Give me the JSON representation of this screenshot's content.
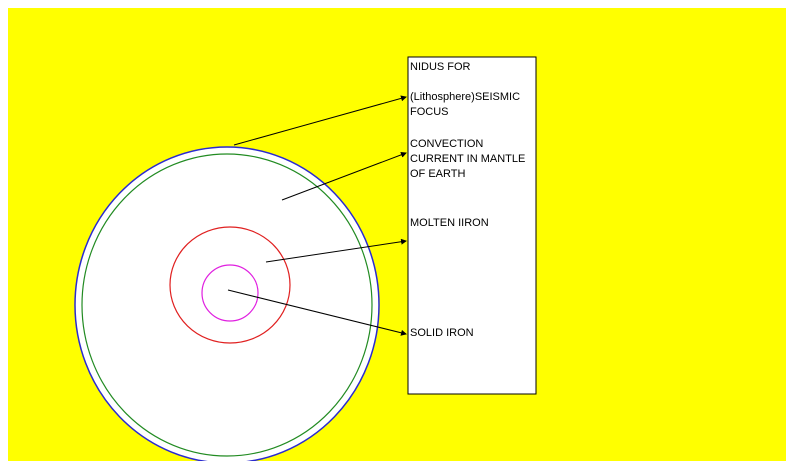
{
  "labels": [
    {
      "lines": [
        "NIDUS FOR"
      ]
    },
    {
      "lines": [
        "(Lithosphere)SEISMIC",
        "FOCUS"
      ]
    },
    {
      "lines": [
        "CONVECTION",
        "CURRENT IN MANTLE",
        "OF EARTH"
      ]
    },
    {
      "lines": [
        "MOLTEN IIRON"
      ]
    },
    {
      "lines": [
        "SOLID IRON"
      ]
    }
  ]
}
